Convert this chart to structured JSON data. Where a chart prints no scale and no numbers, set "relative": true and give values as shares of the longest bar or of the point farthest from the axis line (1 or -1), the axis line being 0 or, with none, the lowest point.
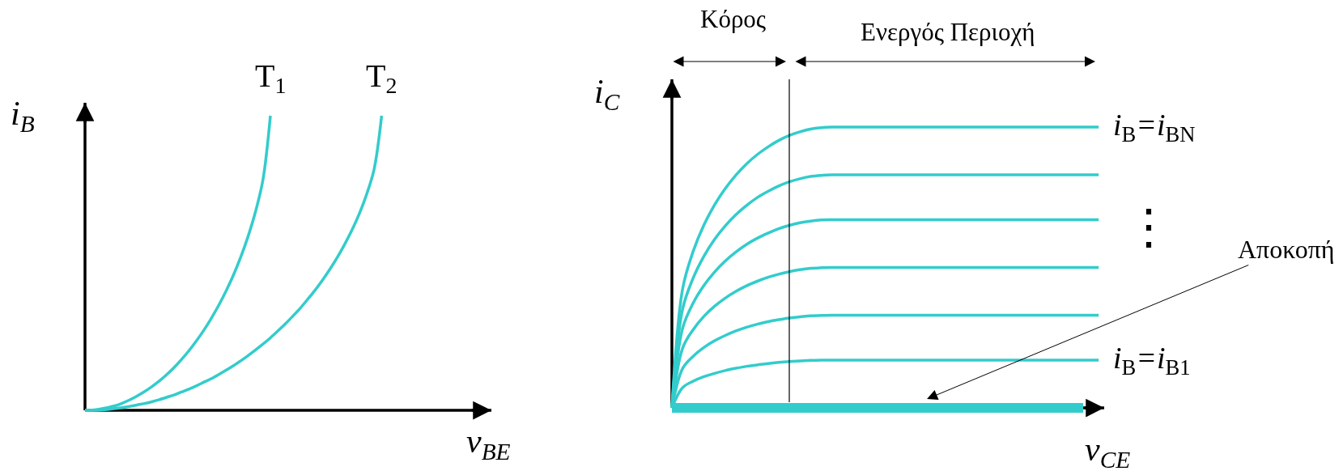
{
  "chart_data": [
    {
      "type": "line",
      "relative": true,
      "xlabel": "v$_{BE}$",
      "ylabel": "i$_{B}$",
      "categories": [
        null,
        null,
        null,
        null,
        null,
        null,
        null,
        null,
        null,
        null,
        null,
        null,
        null,
        null,
        null,
        null,
        null,
        null,
        null,
        null,
        null,
        null,
        null,
        null,
        null,
        null,
        null,
        null,
        null,
        null,
        null,
        null,
        null,
        null,
        null,
        null,
        null,
        null,
        null,
        null,
        null
      ],
      "series": [
        {
          "name": "T$_{1}$",
          "color": "#33cccc",
          "values": [
            0,
            0.001,
            0.004,
            0.009,
            0.015,
            0.024,
            0.035,
            0.048,
            0.063,
            0.08,
            0.099,
            0.121,
            0.145,
            0.172,
            0.202,
            0.235,
            0.271,
            0.311,
            0.355,
            0.404,
            0.458,
            0.52,
            0.591,
            0.675,
            0.783,
            1,
            null,
            null,
            null,
            null,
            null,
            null,
            null,
            null,
            null,
            null,
            null,
            null,
            null,
            null,
            null
          ]
        },
        {
          "name": "T$_{2}$",
          "color": "#33cccc",
          "values": [
            0,
            0,
            0.001,
            0.003,
            0.006,
            0.009,
            0.013,
            0.018,
            0.023,
            0.029,
            0.036,
            0.044,
            0.052,
            0.062,
            0.072,
            0.083,
            0.095,
            0.107,
            0.121,
            0.136,
            0.151,
            0.168,
            0.186,
            0.205,
            0.225,
            0.246,
            0.269,
            0.293,
            0.319,
            0.346,
            0.376,
            0.407,
            0.441,
            0.478,
            0.518,
            0.563,
            0.612,
            0.668,
            0.735,
            0.82,
            1
          ]
        }
      ]
    },
    {
      "type": "line",
      "relative": true,
      "xlabel": "v$_{CE}$",
      "ylabel": "i$_{C}$",
      "categories": [
        null,
        null,
        null,
        null,
        null,
        null,
        null,
        null,
        null,
        null,
        null,
        null,
        null,
        null,
        null,
        null,
        null,
        null,
        null,
        null,
        null,
        null,
        null,
        null,
        null,
        null,
        null,
        null,
        null,
        null,
        null,
        null,
        null,
        null,
        null,
        null,
        null,
        null,
        null,
        null,
        null
      ],
      "series": [
        {
          "name": "i$_{B}$=i$_{B1}$",
          "color": "#33cccc",
          "values": [
            0,
            0.072,
            0.095,
            0.111,
            0.123,
            0.133,
            0.141,
            0.148,
            0.153,
            0.158,
            0.162,
            0.165,
            0.167,
            0.169,
            0.17,
            0.17,
            0.17,
            0.17,
            0.17,
            0.17,
            0.17,
            0.17,
            0.17,
            0.17,
            0.17,
            0.17,
            0.17,
            0.17,
            0.17,
            0.17,
            0.17,
            0.17,
            0.17,
            0.17,
            0.17,
            0.17,
            0.17,
            0.17,
            0.17,
            0.17,
            0.17
          ]
        },
        {
          "color": "#33cccc",
          "values": [
            0,
            0.14,
            0.184,
            0.215,
            0.239,
            0.258,
            0.274,
            0.287,
            0.298,
            0.307,
            0.314,
            0.32,
            0.324,
            0.328,
            0.329,
            0.33,
            0.33,
            0.33,
            0.33,
            0.33,
            0.33,
            0.33,
            0.33,
            0.33,
            0.33,
            0.33,
            0.33,
            0.33,
            0.33,
            0.33,
            0.33,
            0.33,
            0.33,
            0.33,
            0.33,
            0.33,
            0.33,
            0.33,
            0.33,
            0.33,
            0.33
          ]
        },
        {
          "color": "#33cccc",
          "values": [
            0,
            0.212,
            0.279,
            0.326,
            0.362,
            0.391,
            0.415,
            0.435,
            0.451,
            0.465,
            0.476,
            0.485,
            0.492,
            0.497,
            0.499,
            0.5,
            0.5,
            0.5,
            0.5,
            0.5,
            0.5,
            0.5,
            0.5,
            0.5,
            0.5,
            0.5,
            0.5,
            0.5,
            0.5,
            0.5,
            0.5,
            0.5,
            0.5,
            0.5,
            0.5,
            0.5,
            0.5,
            0.5,
            0.5,
            0.5,
            0.5
          ]
        },
        {
          "color": "#33cccc",
          "values": [
            0,
            0.283,
            0.374,
            0.436,
            0.484,
            0.523,
            0.555,
            0.582,
            0.604,
            0.622,
            0.638,
            0.65,
            0.659,
            0.665,
            0.669,
            0.67,
            0.67,
            0.67,
            0.67,
            0.67,
            0.67,
            0.67,
            0.67,
            0.67,
            0.67,
            0.67,
            0.67,
            0.67,
            0.67,
            0.67,
            0.67,
            0.67,
            0.67,
            0.67,
            0.67,
            0.67,
            0.67,
            0.67,
            0.67,
            0.67,
            0.67
          ]
        },
        {
          "color": "#33cccc",
          "values": [
            0,
            0.351,
            0.463,
            0.54,
            0.6,
            0.648,
            0.688,
            0.721,
            0.749,
            0.771,
            0.79,
            0.805,
            0.816,
            0.824,
            0.828,
            0.83,
            0.83,
            0.83,
            0.83,
            0.83,
            0.83,
            0.83,
            0.83,
            0.83,
            0.83,
            0.83,
            0.83,
            0.83,
            0.83,
            0.83,
            0.83,
            0.83,
            0.83,
            0.83,
            0.83,
            0.83,
            0.83,
            0.83,
            0.83,
            0.83,
            0.83
          ]
        },
        {
          "name": "i$_{B}$=i$_{BN}$",
          "color": "#33cccc",
          "values": [
            0,
            0.423,
            0.558,
            0.651,
            0.723,
            0.781,
            0.829,
            0.869,
            0.902,
            0.929,
            0.952,
            0.97,
            0.983,
            0.993,
            0.998,
            1,
            1,
            1,
            1,
            1,
            1,
            1,
            1,
            1,
            1,
            1,
            1,
            1,
            1,
            1,
            1,
            1,
            1,
            1,
            1,
            1,
            1,
            1,
            1,
            1,
            1
          ]
        }
      ],
      "ref_lines": [
        {
          "axis": "y",
          "value": 0,
          "label": "Αποκοπή",
          "color": "#33cccc"
        }
      ],
      "annotations": [
        "Κόρος",
        "Ενεργός Περιοχή",
        "⋮"
      ]
    }
  ]
}
